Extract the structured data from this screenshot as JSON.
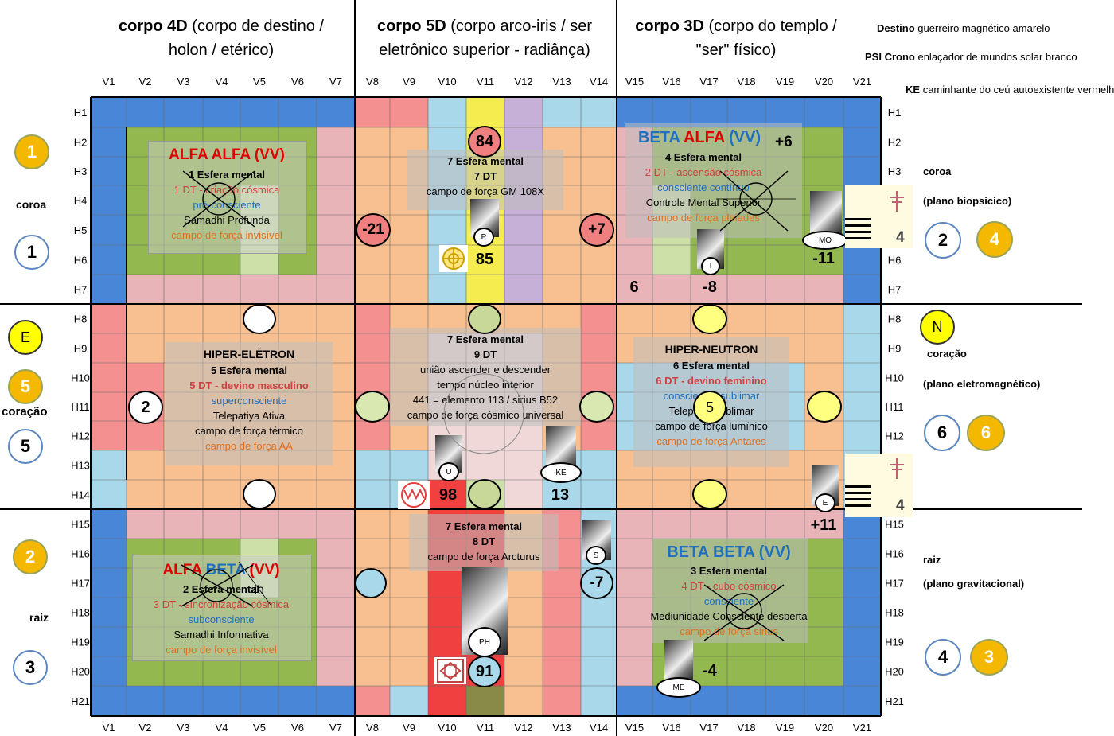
{
  "headers": [
    {
      "bold": "corpo 4D",
      "rest": " (corpo de destino /",
      "line2": "holon / etérico)"
    },
    {
      "bold": "corpo 5D",
      "rest": " (corpo arco-iris / ser",
      "line2": "eletrônico superior - radiânça)"
    },
    {
      "bold": "corpo 3D",
      "rest": " (corpo do templo /",
      "line2": "\"ser\" físico)"
    }
  ],
  "info": [
    {
      "key": "Destino",
      "value": "guerreiro magnético amarelo"
    },
    {
      "key": "PSI Crono",
      "value": "enlaçador de mundos solar branco"
    },
    {
      "key": "KE",
      "value": "caminhante do ceú autoexistente vermelho"
    }
  ],
  "columns": [
    "V1",
    "V2",
    "V3",
    "V4",
    "V5",
    "V6",
    "V7",
    "V8",
    "V9",
    "V10",
    "V11",
    "V12",
    "V13",
    "V14",
    "V15",
    "V16",
    "V17",
    "V18",
    "V19",
    "V20",
    "V21"
  ],
  "rows": [
    "H1",
    "H2",
    "H3",
    "H4",
    "H5",
    "H6",
    "H7",
    "H8",
    "H9",
    "H10",
    "H11",
    "H12",
    "H13",
    "H14",
    "H15",
    "H16",
    "H17",
    "H18",
    "H19",
    "H20",
    "H21"
  ],
  "left_side": {
    "coroa": {
      "label": "coroa",
      "gold": "1",
      "blue": "1"
    },
    "coracao": {
      "label": "coração",
      "yellow": "E",
      "gold": "5",
      "blue": "5"
    },
    "raiz": {
      "label": "raiz",
      "gold": "2",
      "blue": "3"
    }
  },
  "right_side": {
    "coroa": {
      "label": "coroa",
      "plane": "(plano biopsicico)",
      "blue": "2",
      "gold": "4"
    },
    "coracao": {
      "label": "coração",
      "plane": "(plano eletromagnético)",
      "yellow": "N",
      "blue": "6",
      "gold": "6"
    },
    "raiz": {
      "label": "raiz",
      "plane": "(plano gravitacional)",
      "blue": "4",
      "gold": "3"
    }
  },
  "blocks": {
    "alfa_alfa": {
      "title": "ALFA ALFA (VV)",
      "esfera": "1 Esfera mental",
      "dt": "1 DT - criação cósmica",
      "consc": "pré-consciente",
      "state": "Samadhi  Profunda",
      "campo": "campo de força invisível"
    },
    "alfa_beta": {
      "t1": "ALFA ",
      "t2": "BETA",
      "t3": " (VV)",
      "esfera": "2 Esfera mental",
      "num40": "40",
      "dt": "3 DT - sincronização cósmica",
      "consc": "subconsciente",
      "state": "Samadhi  Informativa",
      "campo": "campo de força invisível"
    },
    "beta_alfa": {
      "t1": "BETA ",
      "t2": "ALFA",
      "t3": " (VV)",
      "plus": "+6",
      "esfera": "4 Esfera mental",
      "dt": "2 DT - ascensão cósmica",
      "consc": "consciente contínuo",
      "state": "Controle Mental Superior",
      "campo": "campo de força pleiades"
    },
    "beta_beta": {
      "title": "BETA BETA (VV)",
      "esfera": "3 Esfera mental",
      "dt": "4 DT - cubo cósmico",
      "consc": "consciente",
      "state": "Mediunidade Consciente desperta",
      "campo": "campo de força sirius"
    },
    "hiper_eletron": {
      "title": "HIPER-ELÉTRON",
      "esfera": "5 Esfera mental",
      "dt": "5 DT - devino masculino",
      "consc": "superconsciente",
      "state": "Telepatiya Ativa",
      "campo": "campo de força térmico",
      "campo2": "campo de força AA",
      "num": "2"
    },
    "hiper_neutron": {
      "title": "HIPER-NEUTRON",
      "esfera": "6 Esfera mental",
      "dt": "6 DT - devino feminino",
      "consc": "consciencia sublimar",
      "state": "Telepatia Sublimar",
      "campo": "campo de força lumínico",
      "campo2": "campo de força Antares",
      "num": "5"
    },
    "top5d": {
      "num": "84",
      "esfera": "7 Esfera mental",
      "dt": "7 DT",
      "campo": "campo de força GM 108X",
      "left": "-21",
      "right": "+7",
      "num85": "85"
    },
    "mid5d": {
      "esfera": "7 Esfera mental",
      "dt": "9 DT",
      "l1": "união ascender e descender",
      "l2": "tempo núcleo interior",
      "l3": "441 = elemento 113 / sirius B52",
      "l4": "campo de força cósmico universal",
      "num98": "98",
      "num13": "13"
    },
    "bot5d": {
      "esfera": "7 Esfera mental",
      "dt": "8 DT",
      "campo": "campo de força Arcturus",
      "num91": "91",
      "minus7": "-7"
    }
  },
  "crystals": {
    "p": "P",
    "t": "T",
    "mo": "MO",
    "u": "U",
    "ke": "KE",
    "e": "E",
    "s": "S",
    "ph": "PH",
    "me": "ME"
  },
  "numbers": {
    "six": "6",
    "minus8": "-8",
    "minus11": "-11",
    "plus11": "+11",
    "minus4": "-4",
    "four_a": "4",
    "four_b": "4"
  }
}
